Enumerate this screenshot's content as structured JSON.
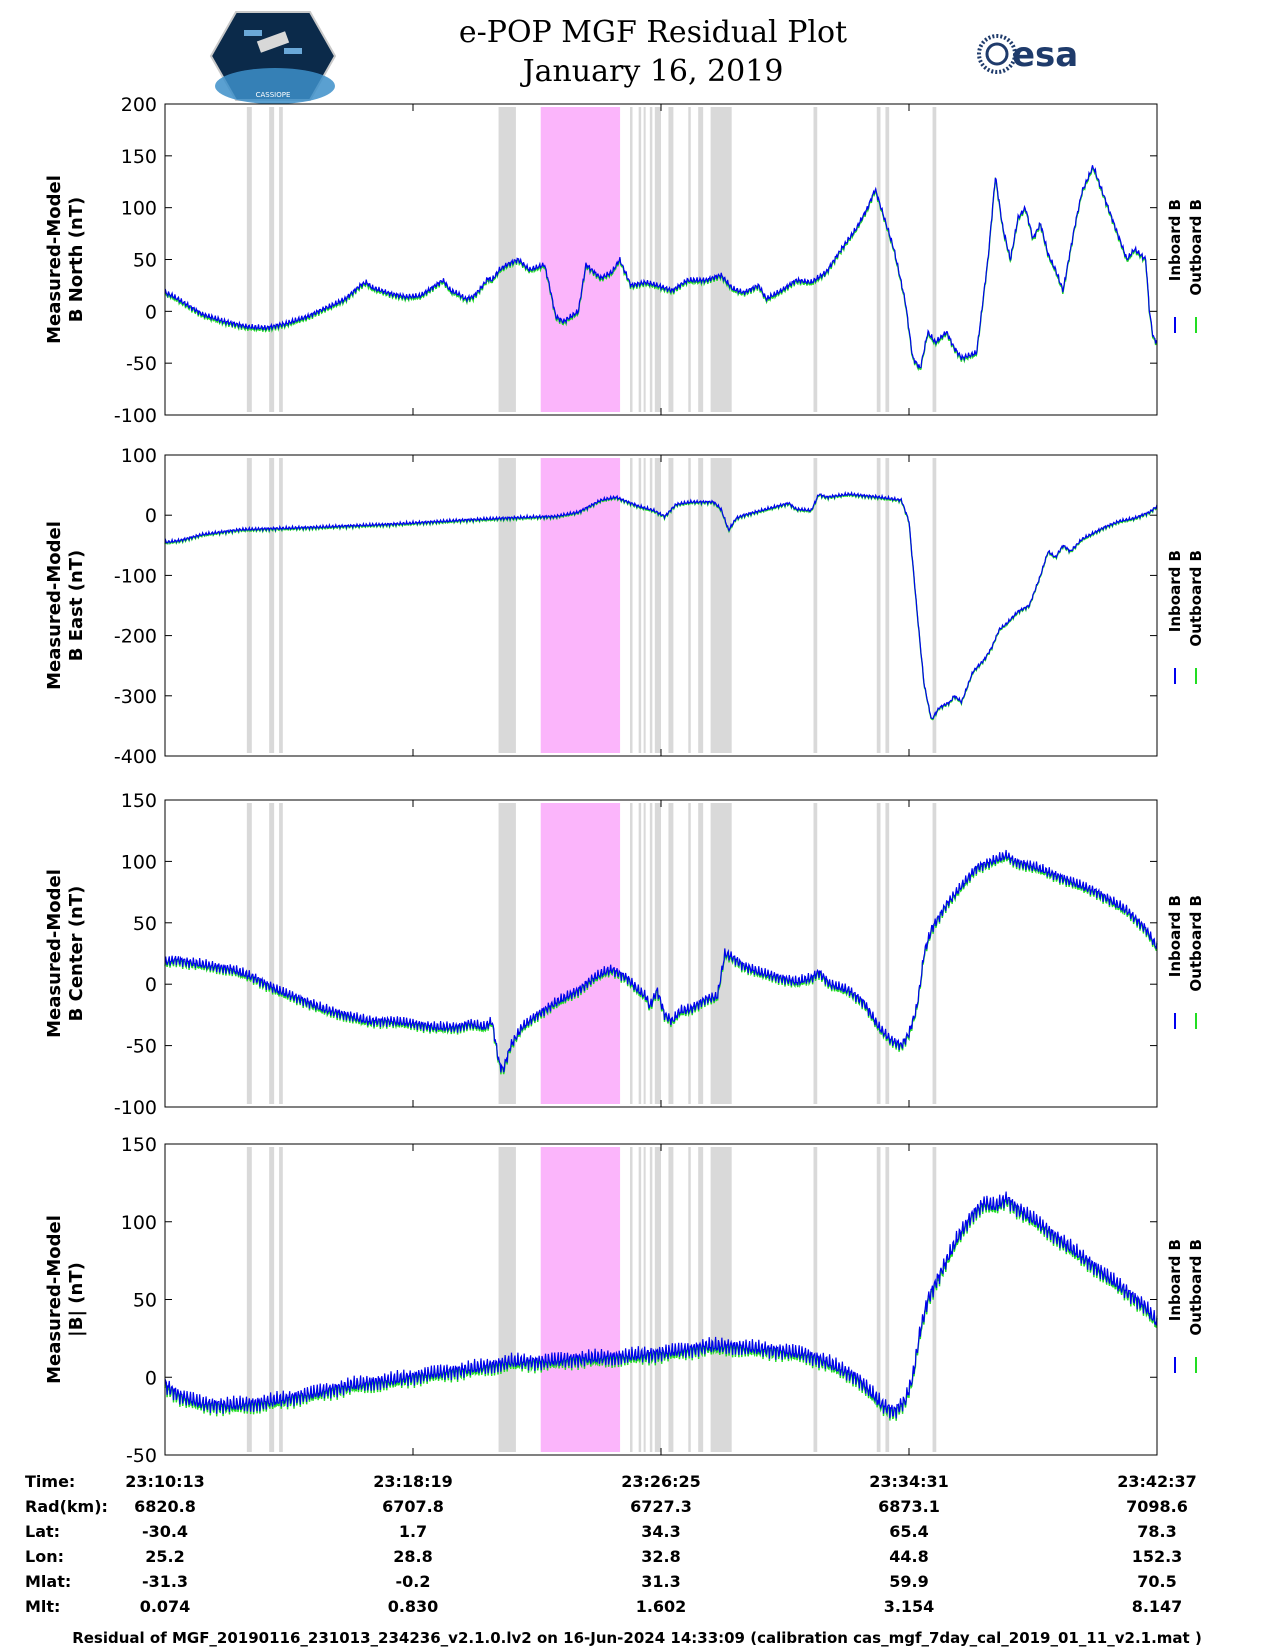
{
  "header": {
    "title_line1": "e-POP MGF Residual Plot",
    "title_line2": "January 16, 2019",
    "left_logo_text": "CASSIOPE",
    "right_logo_text": "esa"
  },
  "colors": {
    "inboard": "#0000ee",
    "outboard": "#22dd22",
    "gray_band": "#d9d9d9",
    "pink_band": "#fbb5fb"
  },
  "legend": {
    "inboard_label": "Inboard B",
    "outboard_label": "Outboard B"
  },
  "chart_data": [
    {
      "type": "line",
      "ylabel_line1": "Measured-Model",
      "ylabel_line2": "B North (nT)",
      "ylim": [
        -100,
        200
      ],
      "yticks": [
        200,
        150,
        100,
        50,
        0,
        -50,
        -100
      ],
      "xlim": [
        0,
        4
      ]
    },
    {
      "type": "line",
      "ylabel_line1": "Measured-Model",
      "ylabel_line2": "B East (nT)",
      "ylim": [
        -400,
        100
      ],
      "yticks": [
        100,
        0,
        -100,
        -200,
        -300,
        -400
      ],
      "xlim": [
        0,
        4
      ]
    },
    {
      "type": "line",
      "ylabel_line1": "Measured-Model",
      "ylabel_line2": "B Center (nT)",
      "ylim": [
        -100,
        150
      ],
      "yticks": [
        150,
        100,
        50,
        0,
        -50,
        -100
      ],
      "xlim": [
        0,
        4
      ]
    },
    {
      "type": "line",
      "ylabel_line1": "Measured-Model",
      "ylabel_line2": "|B| (nT)",
      "ylim": [
        -50,
        150
      ],
      "yticks": [
        150,
        100,
        50,
        0,
        -50
      ],
      "xlim": [
        0,
        4
      ]
    }
  ],
  "shaded_bands": {
    "gray": [
      [
        0.33,
        0.35
      ],
      [
        0.42,
        0.44
      ],
      [
        0.46,
        0.475
      ],
      [
        1.345,
        1.415
      ],
      [
        1.875,
        1.885
      ],
      [
        1.91,
        1.92
      ],
      [
        1.93,
        1.935
      ],
      [
        1.955,
        1.965
      ],
      [
        1.975,
        2.0
      ],
      [
        2.03,
        2.05
      ],
      [
        2.11,
        2.12
      ],
      [
        2.15,
        2.17
      ],
      [
        2.2,
        2.285
      ],
      [
        2.615,
        2.63
      ],
      [
        2.87,
        2.885
      ],
      [
        2.905,
        2.92
      ],
      [
        3.095,
        3.11
      ]
    ],
    "pink": [
      [
        1.515,
        1.835
      ]
    ]
  },
  "traces": {
    "north": [
      [
        0,
        18
      ],
      [
        0.1,
        15
      ],
      [
        0.3,
        6
      ],
      [
        0.5,
        -3
      ],
      [
        0.8,
        -10
      ],
      [
        1.1,
        -15
      ],
      [
        1.35,
        -16
      ],
      [
        1.6,
        -12
      ],
      [
        1.9,
        -5
      ],
      [
        2.1,
        2
      ],
      [
        2.2,
        5
      ],
      [
        2.4,
        12
      ],
      [
        2.6,
        25
      ],
      [
        2.68,
        28
      ],
      [
        2.75,
        23
      ],
      [
        3,
        17
      ],
      [
        3.2,
        14
      ],
      [
        3.4,
        15
      ],
      [
        3.6,
        25
      ],
      [
        3.7,
        30
      ],
      [
        3.8,
        20
      ],
      [
        3.9,
        17
      ],
      [
        4,
        12
      ],
      [
        4.1,
        14
      ],
      [
        4.2,
        22
      ],
      [
        4.3,
        32
      ],
      [
        4.35,
        30
      ],
      [
        4.45,
        40
      ],
      [
        4.55,
        45
      ],
      [
        4.7,
        50
      ],
      [
        4.85,
        40
      ],
      [
        5.05,
        45
      ],
      [
        5.1,
        30
      ],
      [
        5.2,
        -5
      ],
      [
        5.3,
        -10
      ],
      [
        5.5,
        0
      ],
      [
        5.6,
        45
      ],
      [
        5.8,
        32
      ],
      [
        5.95,
        38
      ],
      [
        6.05,
        50
      ],
      [
        6.2,
        25
      ],
      [
        6.4,
        28
      ],
      [
        6.55,
        25
      ],
      [
        6.75,
        20
      ],
      [
        6.95,
        30
      ],
      [
        7.2,
        30
      ],
      [
        7.4,
        35
      ],
      [
        7.55,
        22
      ],
      [
        7.7,
        18
      ],
      [
        7.9,
        25
      ],
      [
        8.0,
        12
      ],
      [
        8.2,
        20
      ],
      [
        8.4,
        30
      ],
      [
        8.6,
        28
      ],
      [
        8.8,
        38
      ],
      [
        9.0,
        60
      ],
      [
        9.2,
        80
      ],
      [
        9.35,
        100
      ],
      [
        9.45,
        118
      ],
      [
        9.55,
        95
      ],
      [
        9.7,
        60
      ],
      [
        9.85,
        10
      ],
      [
        9.95,
        -45
      ],
      [
        10.05,
        -55
      ],
      [
        10.15,
        -20
      ],
      [
        10.25,
        -30
      ],
      [
        10.4,
        -20
      ],
      [
        10.5,
        -35
      ],
      [
        10.6,
        -45
      ],
      [
        10.8,
        -40
      ],
      [
        10.95,
        50
      ],
      [
        11.05,
        130
      ],
      [
        11.15,
        80
      ],
      [
        11.25,
        50
      ],
      [
        11.35,
        90
      ],
      [
        11.45,
        100
      ],
      [
        11.55,
        70
      ],
      [
        11.65,
        85
      ],
      [
        11.75,
        55
      ],
      [
        11.85,
        40
      ],
      [
        11.95,
        20
      ],
      [
        12.1,
        80
      ],
      [
        12.2,
        115
      ],
      [
        12.35,
        140
      ],
      [
        12.45,
        120
      ],
      [
        12.55,
        100
      ],
      [
        12.7,
        70
      ],
      [
        12.8,
        50
      ],
      [
        12.9,
        60
      ],
      [
        13.05,
        50
      ],
      [
        13.1,
        0
      ],
      [
        13.15,
        -25
      ],
      [
        13.2,
        -30
      ]
    ],
    "east": [
      [
        0,
        -45
      ],
      [
        0.2,
        -42
      ],
      [
        0.5,
        -32
      ],
      [
        1,
        -24
      ],
      [
        2,
        -20
      ],
      [
        3,
        -15
      ],
      [
        4,
        -8
      ],
      [
        4.5,
        -5
      ],
      [
        4.9,
        -3
      ],
      [
        5.2,
        -2
      ],
      [
        5.5,
        5
      ],
      [
        5.8,
        25
      ],
      [
        6,
        30
      ],
      [
        6.2,
        20
      ],
      [
        6.3,
        15
      ],
      [
        6.5,
        8
      ],
      [
        6.65,
        -2
      ],
      [
        6.8,
        18
      ],
      [
        7,
        22
      ],
      [
        7.3,
        22
      ],
      [
        7.4,
        10
      ],
      [
        7.5,
        -25
      ],
      [
        7.6,
        -5
      ],
      [
        7.7,
        0
      ],
      [
        8.0,
        10
      ],
      [
        8.3,
        20
      ],
      [
        8.4,
        10
      ],
      [
        8.6,
        8
      ],
      [
        8.7,
        35
      ],
      [
        8.8,
        30
      ],
      [
        9.1,
        35
      ],
      [
        9.5,
        30
      ],
      [
        9.8,
        25
      ],
      [
        9.9,
        -10
      ],
      [
        10.0,
        -150
      ],
      [
        10.1,
        -280
      ],
      [
        10.2,
        -340
      ],
      [
        10.3,
        -320
      ],
      [
        10.45,
        -310
      ],
      [
        10.5,
        -300
      ],
      [
        10.6,
        -310
      ],
      [
        10.75,
        -260
      ],
      [
        10.9,
        -240
      ],
      [
        11.0,
        -220
      ],
      [
        11.1,
        -190
      ],
      [
        11.2,
        -180
      ],
      [
        11.35,
        -160
      ],
      [
        11.5,
        -150
      ],
      [
        11.65,
        -100
      ],
      [
        11.75,
        -60
      ],
      [
        11.85,
        -70
      ],
      [
        11.95,
        -50
      ],
      [
        12.05,
        -60
      ],
      [
        12.2,
        -40
      ],
      [
        12.35,
        -30
      ],
      [
        12.5,
        -20
      ],
      [
        12.7,
        -10
      ],
      [
        12.9,
        -5
      ],
      [
        13.1,
        5
      ],
      [
        13.2,
        15
      ]
    ],
    "center": [
      [
        0,
        18
      ],
      [
        0.15,
        20
      ],
      [
        0.3,
        18
      ],
      [
        0.6,
        15
      ],
      [
        0.9,
        12
      ],
      [
        1.2,
        5
      ],
      [
        1.5,
        -5
      ],
      [
        1.8,
        -12
      ],
      [
        2.1,
        -20
      ],
      [
        2.4,
        -25
      ],
      [
        2.7,
        -30
      ],
      [
        3.0,
        -30
      ],
      [
        3.3,
        -32
      ],
      [
        3.6,
        -35
      ],
      [
        3.9,
        -35
      ],
      [
        4.05,
        -32
      ],
      [
        4.25,
        -35
      ],
      [
        4.35,
        -30
      ],
      [
        4.45,
        -65
      ],
      [
        4.5,
        -70
      ],
      [
        4.6,
        -50
      ],
      [
        4.75,
        -35
      ],
      [
        4.95,
        -25
      ],
      [
        5.2,
        -15
      ],
      [
        5.5,
        -5
      ],
      [
        5.7,
        5
      ],
      [
        5.85,
        10
      ],
      [
        5.95,
        12
      ],
      [
        6.15,
        5
      ],
      [
        6.3,
        -5
      ],
      [
        6.4,
        -10
      ],
      [
        6.45,
        -18
      ],
      [
        6.55,
        -5
      ],
      [
        6.65,
        -25
      ],
      [
        6.75,
        -30
      ],
      [
        6.85,
        -22
      ],
      [
        7.0,
        -20
      ],
      [
        7.2,
        -12
      ],
      [
        7.35,
        -10
      ],
      [
        7.45,
        25
      ],
      [
        7.55,
        22
      ],
      [
        7.7,
        15
      ],
      [
        7.9,
        10
      ],
      [
        8.2,
        5
      ],
      [
        8.4,
        2
      ],
      [
        8.6,
        5
      ],
      [
        8.7,
        10
      ],
      [
        8.85,
        0
      ],
      [
        9.1,
        -5
      ],
      [
        9.3,
        -15
      ],
      [
        9.5,
        -35
      ],
      [
        9.65,
        -45
      ],
      [
        9.8,
        -50
      ],
      [
        9.9,
        -40
      ],
      [
        10.0,
        -20
      ],
      [
        10.05,
        0
      ],
      [
        10.1,
        25
      ],
      [
        10.2,
        45
      ],
      [
        10.4,
        65
      ],
      [
        10.6,
        80
      ],
      [
        10.8,
        95
      ],
      [
        11.0,
        100
      ],
      [
        11.2,
        105
      ],
      [
        11.3,
        100
      ],
      [
        11.6,
        95
      ],
      [
        12.0,
        85
      ],
      [
        12.4,
        75
      ],
      [
        12.8,
        60
      ],
      [
        13.05,
        45
      ],
      [
        13.2,
        30
      ]
    ],
    "magnitude": [
      [
        0,
        -5
      ],
      [
        0.2,
        -12
      ],
      [
        0.5,
        -17
      ],
      [
        0.8,
        -18
      ],
      [
        1.2,
        -17
      ],
      [
        1.6,
        -14
      ],
      [
        2.0,
        -10
      ],
      [
        2.5,
        -5
      ],
      [
        3.0,
        -2
      ],
      [
        3.5,
        2
      ],
      [
        4.0,
        5
      ],
      [
        4.4,
        8
      ],
      [
        4.6,
        10
      ],
      [
        5.0,
        10
      ],
      [
        5.5,
        12
      ],
      [
        6.0,
        13
      ],
      [
        6.5,
        15
      ],
      [
        7.0,
        18
      ],
      [
        7.2,
        20
      ],
      [
        7.5,
        20
      ],
      [
        8.0,
        18
      ],
      [
        8.5,
        15
      ],
      [
        8.8,
        10
      ],
      [
        9.0,
        5
      ],
      [
        9.2,
        0
      ],
      [
        9.4,
        -10
      ],
      [
        9.55,
        -18
      ],
      [
        9.7,
        -22
      ],
      [
        9.85,
        -15
      ],
      [
        9.95,
        0
      ],
      [
        10.05,
        30
      ],
      [
        10.15,
        50
      ],
      [
        10.35,
        70
      ],
      [
        10.55,
        90
      ],
      [
        10.75,
        105
      ],
      [
        10.9,
        112
      ],
      [
        11.05,
        110
      ],
      [
        11.2,
        115
      ],
      [
        11.3,
        110
      ],
      [
        11.6,
        100
      ],
      [
        12.0,
        85
      ],
      [
        12.4,
        70
      ],
      [
        12.8,
        55
      ],
      [
        13.05,
        45
      ],
      [
        13.2,
        35
      ]
    ]
  },
  "time_axis": {
    "labels": [
      "Time:",
      "Rad(km):",
      "Lat:",
      "Lon:",
      "Mlat:",
      "Mlt:"
    ],
    "columns": [
      {
        "time": "23:10:13",
        "rad": "6820.8",
        "lat": "-30.4",
        "lon": "25.2",
        "mlat": "-31.3",
        "mlt": "0.074"
      },
      {
        "time": "23:18:19",
        "rad": "6707.8",
        "lat": "1.7",
        "lon": "28.8",
        "mlat": "-0.2",
        "mlt": "0.830"
      },
      {
        "time": "23:26:25",
        "rad": "6727.3",
        "lat": "34.3",
        "lon": "32.8",
        "mlat": "31.3",
        "mlt": "1.602"
      },
      {
        "time": "23:34:31",
        "rad": "6873.1",
        "lat": "65.4",
        "lon": "44.8",
        "mlat": "59.9",
        "mlt": "3.154"
      },
      {
        "time": "23:42:37",
        "rad": "7098.6",
        "lat": "78.3",
        "lon": "152.3",
        "mlat": "70.5",
        "mlt": "8.147"
      }
    ]
  },
  "footer": {
    "text": "Residual of MGF_20190116_231013_234236_v2.1.0.lv2 on 16-Jun-2024 14:33:09 (calibration cas_mgf_7day_cal_2019_01_11_v2.1.mat )"
  }
}
